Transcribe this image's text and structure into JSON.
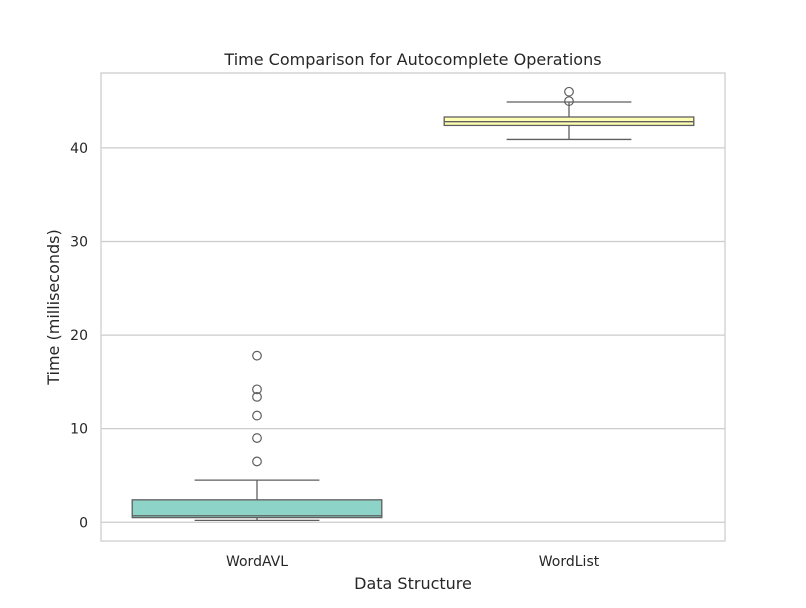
{
  "chart_data": {
    "type": "box",
    "title": "Time Comparison for Autocomplete Operations",
    "xlabel": "Data Structure",
    "ylabel": "Time (milliseconds)",
    "ylim": [
      -2,
      48
    ],
    "yticks": [
      0,
      10,
      20,
      30,
      40
    ],
    "grid": "horizontal",
    "categories": [
      "WordAVL",
      "WordList"
    ],
    "boxes": [
      {
        "category": "WordAVL",
        "color": "#8dd3c7",
        "whisker_low": 0.2,
        "q1": 0.5,
        "median": 0.7,
        "q3": 2.4,
        "whisker_high": 4.5,
        "outliers": [
          6.5,
          9.0,
          11.4,
          13.4,
          14.2,
          17.8
        ]
      },
      {
        "category": "WordList",
        "color": "#ffffb3",
        "whisker_low": 40.9,
        "q1": 42.4,
        "median": 42.8,
        "q3": 43.3,
        "whisker_high": 44.9,
        "outliers": [
          45.0,
          46.0
        ]
      }
    ]
  }
}
